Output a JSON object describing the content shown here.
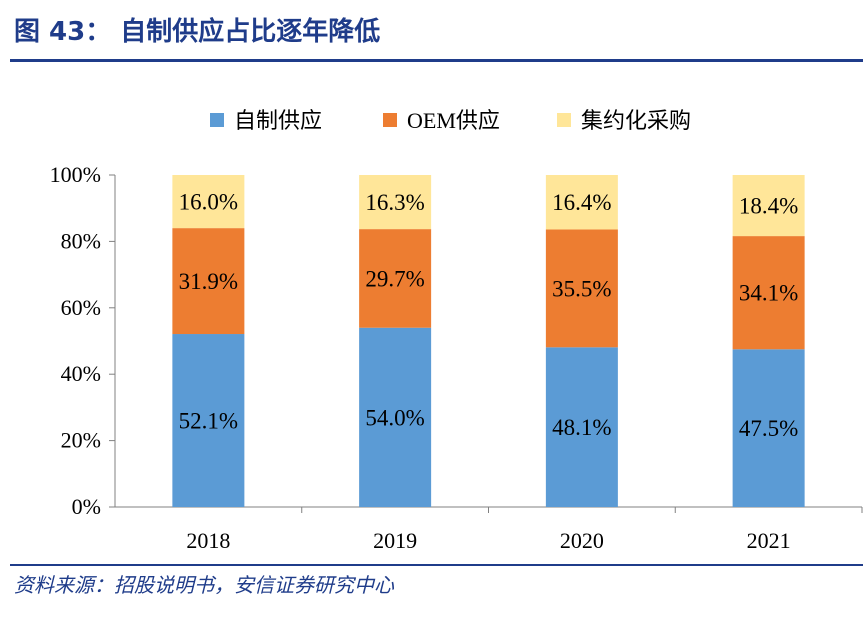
{
  "header": {
    "title": "图 43：  自制供应占比逐年降低"
  },
  "footer": {
    "source": "资料来源：招股说明书，安信证券研究中心"
  },
  "chart_data": {
    "type": "bar",
    "stacked": true,
    "categories": [
      "2018",
      "2019",
      "2020",
      "2021"
    ],
    "series": [
      {
        "name": "自制供应",
        "color": "#5b9bd5",
        "values": [
          52.1,
          54.0,
          48.1,
          47.5
        ],
        "labels": [
          "52.1%",
          "54.0%",
          "48.1%",
          "47.5%"
        ]
      },
      {
        "name": "OEM供应",
        "color": "#ed7d31",
        "values": [
          31.9,
          29.7,
          35.5,
          34.1
        ],
        "labels": [
          "31.9%",
          "29.7%",
          "35.5%",
          "34.1%"
        ]
      },
      {
        "name": "集约化采购",
        "color": "#ffe699",
        "values": [
          16.0,
          16.3,
          16.4,
          18.4
        ],
        "labels": [
          "16.0%",
          "16.3%",
          "16.4%",
          "18.4%"
        ]
      }
    ],
    "yticks": [
      "0%",
      "20%",
      "40%",
      "60%",
      "80%",
      "100%"
    ],
    "ylim": [
      0,
      100
    ],
    "legend_position": "top"
  }
}
